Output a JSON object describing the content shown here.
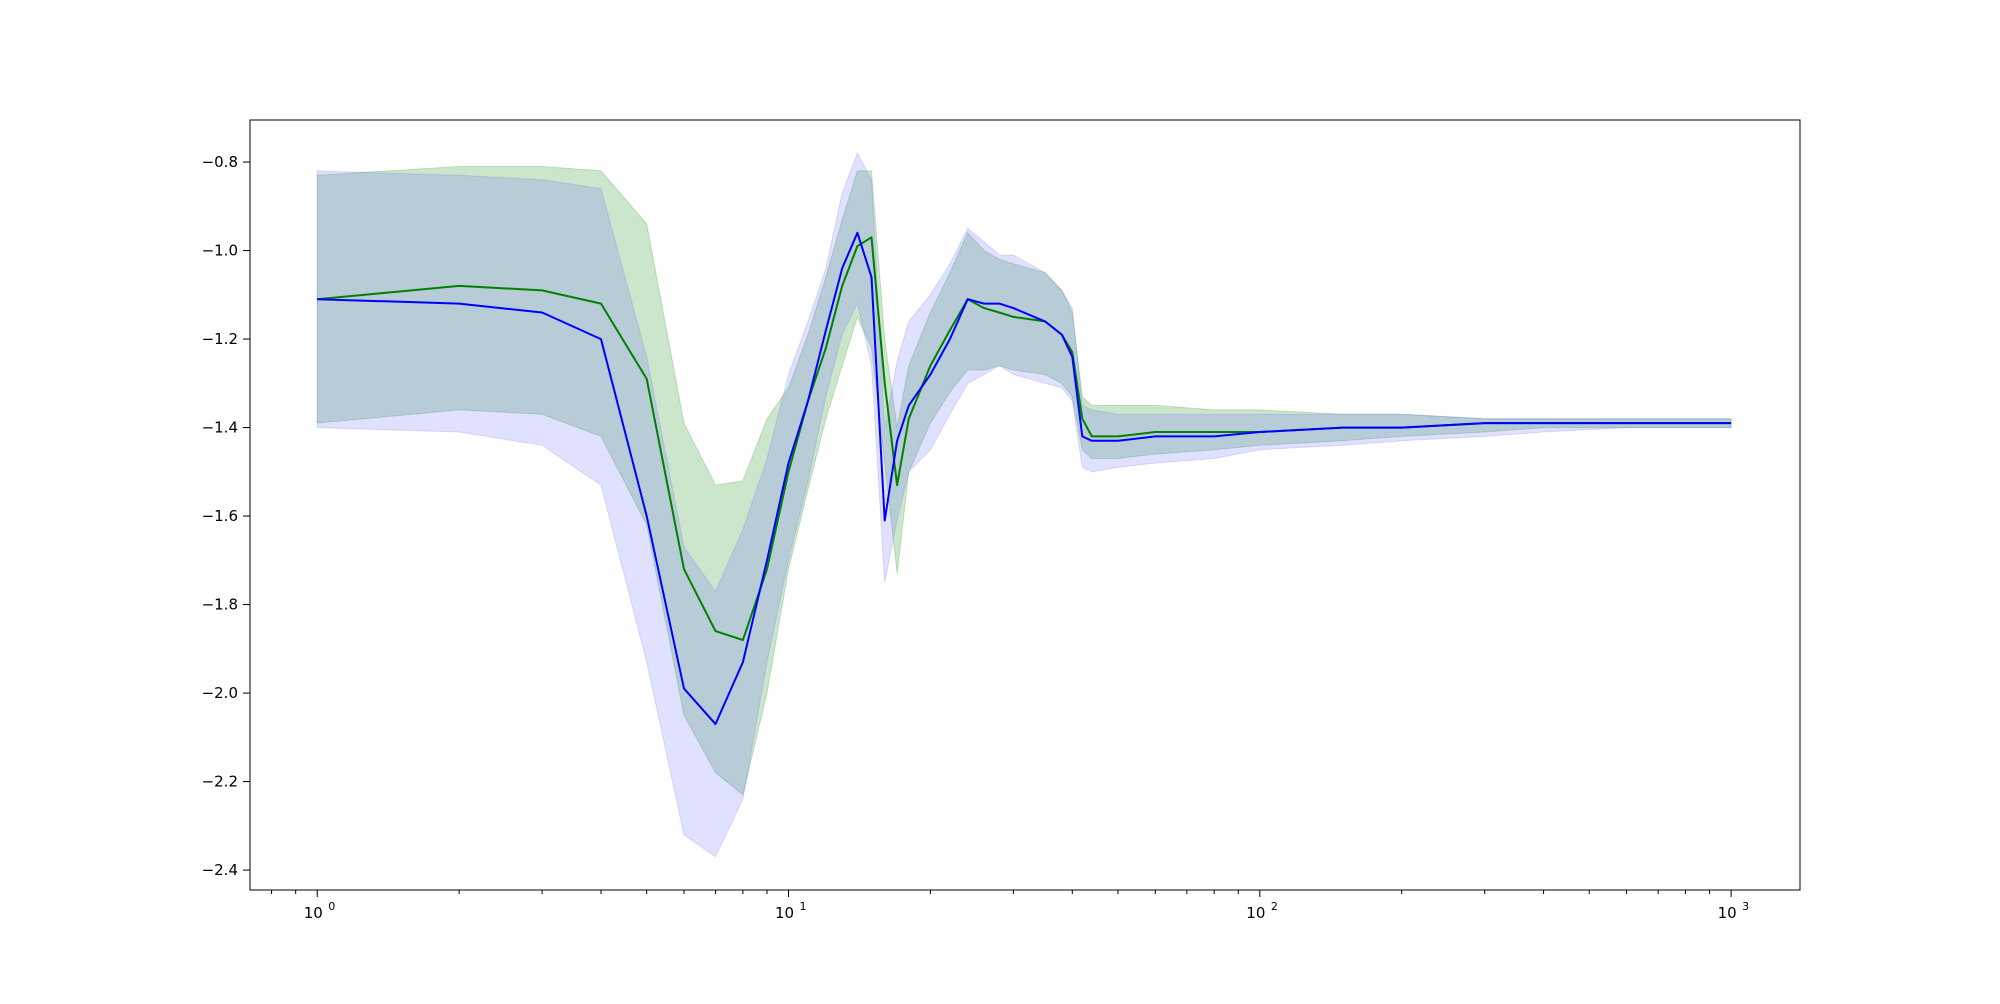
{
  "chart_data": {
    "type": "line",
    "title": "",
    "xlabel": "",
    "ylabel": "",
    "x_scale": "log",
    "xlim": [
      0.72,
      1400
    ],
    "ylim": [
      -2.445,
      -0.705
    ],
    "grid": false,
    "legend": "none",
    "x_ticks": [
      {
        "value": 1,
        "label": "10",
        "exp": "0"
      },
      {
        "value": 10,
        "label": "10",
        "exp": "1"
      },
      {
        "value": 100,
        "label": "10",
        "exp": "2"
      },
      {
        "value": 1000,
        "label": "10",
        "exp": "3"
      }
    ],
    "y_ticks": [
      {
        "value": -0.8,
        "label": "−0.8"
      },
      {
        "value": -1.0,
        "label": "−1.0"
      },
      {
        "value": -1.2,
        "label": "−1.2"
      },
      {
        "value": -1.4,
        "label": "−1.4"
      },
      {
        "value": -1.6,
        "label": "−1.6"
      },
      {
        "value": -1.8,
        "label": "−1.8"
      },
      {
        "value": -2.0,
        "label": "−2.0"
      },
      {
        "value": -2.2,
        "label": "−2.2"
      },
      {
        "value": -2.4,
        "label": "−2.4"
      }
    ],
    "series": [
      {
        "color": "#008000",
        "band_color": "#008000",
        "x": [
          1,
          2,
          3,
          4,
          5,
          6,
          7,
          8,
          9,
          10,
          11,
          12,
          13,
          14,
          15,
          16,
          17,
          18,
          20,
          22,
          24,
          26,
          28,
          30,
          35,
          38,
          40,
          42,
          44,
          50,
          60,
          80,
          100,
          150,
          200,
          300,
          400,
          600,
          800,
          1000
        ],
        "y": [
          -1.11,
          -1.08,
          -1.09,
          -1.12,
          -1.29,
          -1.72,
          -1.86,
          -1.88,
          -1.72,
          -1.5,
          -1.34,
          -1.22,
          -1.08,
          -0.99,
          -0.97,
          -1.3,
          -1.53,
          -1.38,
          -1.26,
          -1.18,
          -1.11,
          -1.13,
          -1.14,
          -1.15,
          -1.16,
          -1.19,
          -1.23,
          -1.38,
          -1.42,
          -1.42,
          -1.41,
          -1.41,
          -1.41,
          -1.4,
          -1.4,
          -1.39,
          -1.39,
          -1.39,
          -1.39,
          -1.39
        ],
        "upper": [
          -0.83,
          -0.81,
          -0.81,
          -0.82,
          -0.94,
          -1.39,
          -1.53,
          -1.52,
          -1.38,
          -1.31,
          -1.19,
          -1.06,
          -0.93,
          -0.82,
          -0.82,
          -1.2,
          -1.4,
          -1.26,
          -1.14,
          -1.05,
          -0.96,
          -1.0,
          -1.02,
          -1.03,
          -1.05,
          -1.09,
          -1.14,
          -1.33,
          -1.35,
          -1.35,
          -1.35,
          -1.36,
          -1.36,
          -1.37,
          -1.37,
          -1.38,
          -1.38,
          -1.38,
          -1.38,
          -1.38
        ],
        "lower": [
          -1.39,
          -1.36,
          -1.37,
          -1.42,
          -1.62,
          -2.05,
          -2.18,
          -2.23,
          -2.0,
          -1.72,
          -1.54,
          -1.38,
          -1.26,
          -1.15,
          -1.22,
          -1.48,
          -1.73,
          -1.5,
          -1.39,
          -1.32,
          -1.27,
          -1.27,
          -1.26,
          -1.27,
          -1.28,
          -1.3,
          -1.33,
          -1.45,
          -1.47,
          -1.47,
          -1.46,
          -1.45,
          -1.44,
          -1.43,
          -1.42,
          -1.41,
          -1.4,
          -1.4,
          -1.4,
          -1.4
        ]
      },
      {
        "color": "#0000ff",
        "band_color": "#6666ff",
        "x": [
          1,
          2,
          3,
          4,
          5,
          6,
          7,
          8,
          9,
          10,
          11,
          12,
          13,
          14,
          15,
          16,
          17,
          18,
          20,
          22,
          24,
          26,
          28,
          30,
          35,
          38,
          40,
          42,
          44,
          50,
          60,
          80,
          100,
          150,
          200,
          300,
          400,
          600,
          800,
          1000
        ],
        "y": [
          -1.11,
          -1.12,
          -1.14,
          -1.2,
          -1.6,
          -1.99,
          -2.07,
          -1.93,
          -1.7,
          -1.48,
          -1.34,
          -1.18,
          -1.04,
          -0.96,
          -1.06,
          -1.61,
          -1.43,
          -1.35,
          -1.28,
          -1.2,
          -1.11,
          -1.12,
          -1.12,
          -1.13,
          -1.16,
          -1.19,
          -1.24,
          -1.42,
          -1.43,
          -1.43,
          -1.42,
          -1.42,
          -1.41,
          -1.4,
          -1.4,
          -1.39,
          -1.39,
          -1.39,
          -1.39,
          -1.39
        ],
        "upper": [
          -0.82,
          -0.83,
          -0.84,
          -0.86,
          -1.24,
          -1.67,
          -1.77,
          -1.63,
          -1.47,
          -1.28,
          -1.16,
          -1.04,
          -0.87,
          -0.78,
          -0.84,
          -1.4,
          -1.25,
          -1.16,
          -1.1,
          -1.03,
          -0.95,
          -0.98,
          -1.01,
          -1.01,
          -1.05,
          -1.09,
          -1.13,
          -1.35,
          -1.36,
          -1.37,
          -1.37,
          -1.37,
          -1.37,
          -1.37,
          -1.37,
          -1.38,
          -1.38,
          -1.38,
          -1.38,
          -1.38
        ],
        "lower": [
          -1.4,
          -1.41,
          -1.44,
          -1.53,
          -1.93,
          -2.32,
          -2.37,
          -2.24,
          -1.93,
          -1.7,
          -1.52,
          -1.33,
          -1.19,
          -1.12,
          -1.26,
          -1.75,
          -1.61,
          -1.5,
          -1.45,
          -1.37,
          -1.3,
          -1.28,
          -1.26,
          -1.28,
          -1.3,
          -1.31,
          -1.34,
          -1.49,
          -1.5,
          -1.49,
          -1.48,
          -1.47,
          -1.45,
          -1.44,
          -1.43,
          -1.42,
          -1.41,
          -1.4,
          -1.4,
          -1.4
        ]
      }
    ]
  }
}
